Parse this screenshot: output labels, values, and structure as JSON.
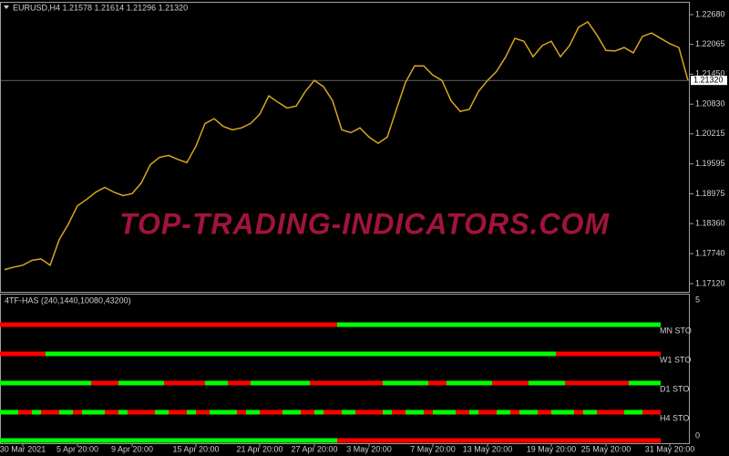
{
  "header": {
    "symbol_line": "EURUSD,H4  1.21578 1.21614 1.21296 1.21320"
  },
  "watermark": "TOP-TRADING-INDICATORS.COM",
  "chart_data": {
    "type": "line",
    "categories": [
      null,
      null,
      "30 Mar 2021",
      null,
      null,
      null,
      null,
      null,
      "5 Apr 20:00",
      null,
      null,
      null,
      null,
      null,
      "9 Apr 20:00",
      null,
      null,
      null,
      null,
      null,
      null,
      "15 Apr 20:00",
      null,
      null,
      null,
      null,
      null,
      null,
      "21 Apr 20:00",
      null,
      null,
      null,
      null,
      null,
      "27 Apr 20:00",
      null,
      null,
      null,
      null,
      null,
      "3 May 20:00",
      null,
      null,
      null,
      null,
      null,
      null,
      "7 May 20:00",
      null,
      null,
      null,
      null,
      null,
      "13 May 20:00",
      null,
      null,
      null,
      null,
      null,
      null,
      "19 May 20:00",
      null,
      null,
      null,
      null,
      null,
      "25 May 20:00",
      null,
      null,
      null,
      null,
      null,
      null,
      "31 May 20:00",
      null,
      null
    ],
    "values": [
      1.1741,
      1.1746,
      1.175,
      1.176,
      1.1763,
      1.175,
      1.1803,
      1.1835,
      1.1873,
      1.1886,
      1.1901,
      1.1911,
      1.1901,
      1.1894,
      1.1898,
      1.192,
      1.1958,
      1.1973,
      1.1977,
      1.1969,
      1.1962,
      1.1996,
      1.2043,
      1.2053,
      1.2037,
      1.203,
      1.2034,
      1.2043,
      1.2062,
      1.21,
      1.2087,
      1.2075,
      1.2079,
      1.2109,
      1.2132,
      1.2119,
      1.209,
      1.203,
      1.2024,
      1.2034,
      1.2015,
      1.2002,
      1.2015,
      1.2072,
      1.2128,
      1.2162,
      1.2162,
      1.2143,
      1.2132,
      1.209,
      1.2068,
      1.2072,
      1.2109,
      1.2132,
      1.2151,
      1.2181,
      1.2219,
      1.2213,
      1.2181,
      1.2204,
      1.2213,
      1.2181,
      1.2204,
      1.2242,
      1.2253,
      1.2226,
      1.2194,
      1.2193,
      1.22,
      1.2189,
      1.2223,
      1.223,
      1.2219,
      1.2208,
      1.22,
      1.2132
    ],
    "color": "#d9a520",
    "ylim": [
      1.1695,
      1.22926
    ],
    "yticks": [
      {
        "value": 1.2268,
        "label": "1.22680"
      },
      1.22065,
      {
        "value": 1.2145,
        "label": "1.21450"
      },
      {
        "value": 1.2083,
        "label": "1.20830"
      },
      1.20215,
      1.19595,
      1.18975,
      {
        "value": 1.1836,
        "label": "1.18360"
      },
      {
        "value": 1.1774,
        "label": "1.17740"
      },
      {
        "value": 1.1712,
        "label": "1.17120"
      }
    ],
    "current_price": {
      "value": 1.2132,
      "label": "1.21320"
    }
  },
  "indicator": {
    "title": "4TF-HAS (240,1440,10080,43200)",
    "ylim": [
      0,
      5
    ],
    "yticks": [
      5,
      0
    ],
    "rows": [
      {
        "label": "MN STO",
        "segments": [
          [
            "#ff0000",
            74
          ],
          [
            "#00ff00",
            71
          ]
        ]
      },
      {
        "label": "W1 STO",
        "segments": [
          [
            "#ff0000",
            10
          ],
          [
            "#00ff00",
            112
          ],
          [
            "#ff0000",
            23
          ]
        ]
      },
      {
        "label": "D1 STO",
        "segments": [
          [
            "#00ff00",
            20
          ],
          [
            "#ff0000",
            6
          ],
          [
            "#00ff00",
            10
          ],
          [
            "#ff0000",
            9
          ],
          [
            "#00ff00",
            5
          ],
          [
            "#ff0000",
            5
          ],
          [
            "#00ff00",
            13
          ],
          [
            "#ff0000",
            16
          ],
          [
            "#00ff00",
            10
          ],
          [
            "#ff0000",
            4
          ],
          [
            "#00ff00",
            10
          ],
          [
            "#ff0000",
            8
          ],
          [
            "#00ff00",
            8
          ],
          [
            "#ff0000",
            14
          ],
          [
            "#00ff00",
            7
          ]
        ]
      },
      {
        "label": "H4 STO",
        "segments": [
          [
            "#00ff00",
            4
          ],
          [
            "#ff0000",
            3
          ],
          [
            "#00ff00",
            2
          ],
          [
            "#ff0000",
            4
          ],
          [
            "#00ff00",
            3
          ],
          [
            "#ff0000",
            2
          ],
          [
            "#00ff00",
            5
          ],
          [
            "#ff0000",
            3
          ],
          [
            "#00ff00",
            2
          ],
          [
            "#ff0000",
            6
          ],
          [
            "#00ff00",
            3
          ],
          [
            "#ff0000",
            4
          ],
          [
            "#00ff00",
            2
          ],
          [
            "#ff0000",
            3
          ],
          [
            "#00ff00",
            6
          ],
          [
            "#ff0000",
            2
          ],
          [
            "#00ff00",
            3
          ],
          [
            "#ff0000",
            5
          ],
          [
            "#00ff00",
            4
          ],
          [
            "#ff0000",
            3
          ],
          [
            "#00ff00",
            2
          ],
          [
            "#ff0000",
            4
          ],
          [
            "#00ff00",
            3
          ],
          [
            "#ff0000",
            6
          ],
          [
            "#00ff00",
            2
          ],
          [
            "#ff0000",
            3
          ],
          [
            "#00ff00",
            4
          ],
          [
            "#ff0000",
            2
          ],
          [
            "#00ff00",
            5
          ],
          [
            "#ff0000",
            3
          ],
          [
            "#00ff00",
            2
          ],
          [
            "#ff0000",
            4
          ],
          [
            "#00ff00",
            3
          ],
          [
            "#ff0000",
            2
          ],
          [
            "#00ff00",
            4
          ],
          [
            "#ff0000",
            3
          ],
          [
            "#00ff00",
            5
          ],
          [
            "#ff0000",
            2
          ],
          [
            "#00ff00",
            3
          ],
          [
            "#ff0000",
            6
          ],
          [
            "#00ff00",
            4
          ],
          [
            "#ff0000",
            4
          ]
        ]
      },
      {
        "segments": [
          [
            "#00ff00",
            74
          ],
          [
            "#ff0000",
            71
          ]
        ]
      }
    ]
  }
}
